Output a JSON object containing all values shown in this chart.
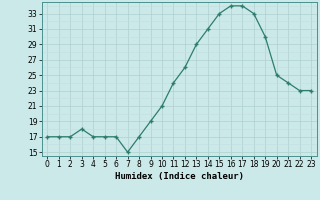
{
  "x": [
    0,
    1,
    2,
    3,
    4,
    5,
    6,
    7,
    8,
    9,
    10,
    11,
    12,
    13,
    14,
    15,
    16,
    17,
    18,
    19,
    20,
    21,
    22,
    23
  ],
  "y": [
    17,
    17,
    17,
    18,
    17,
    17,
    17,
    15,
    17,
    19,
    21,
    24,
    26,
    29,
    31,
    33,
    34,
    34,
    33,
    30,
    25,
    24,
    23,
    23
  ],
  "line_color": "#2d7d6e",
  "marker_color": "#2d7d6e",
  "bg_color": "#cce9e9",
  "grid_major_color": "#b0d0d0",
  "grid_minor_color": "#c4dede",
  "xlabel": "Humidex (Indice chaleur)",
  "xlim": [
    -0.5,
    23.5
  ],
  "ylim": [
    14.5,
    34.5
  ],
  "yticks": [
    15,
    17,
    19,
    21,
    23,
    25,
    27,
    29,
    31,
    33
  ],
  "xticks": [
    0,
    1,
    2,
    3,
    4,
    5,
    6,
    7,
    8,
    9,
    10,
    11,
    12,
    13,
    14,
    15,
    16,
    17,
    18,
    19,
    20,
    21,
    22,
    23
  ],
  "label_fontsize": 6.5,
  "tick_fontsize": 5.5
}
